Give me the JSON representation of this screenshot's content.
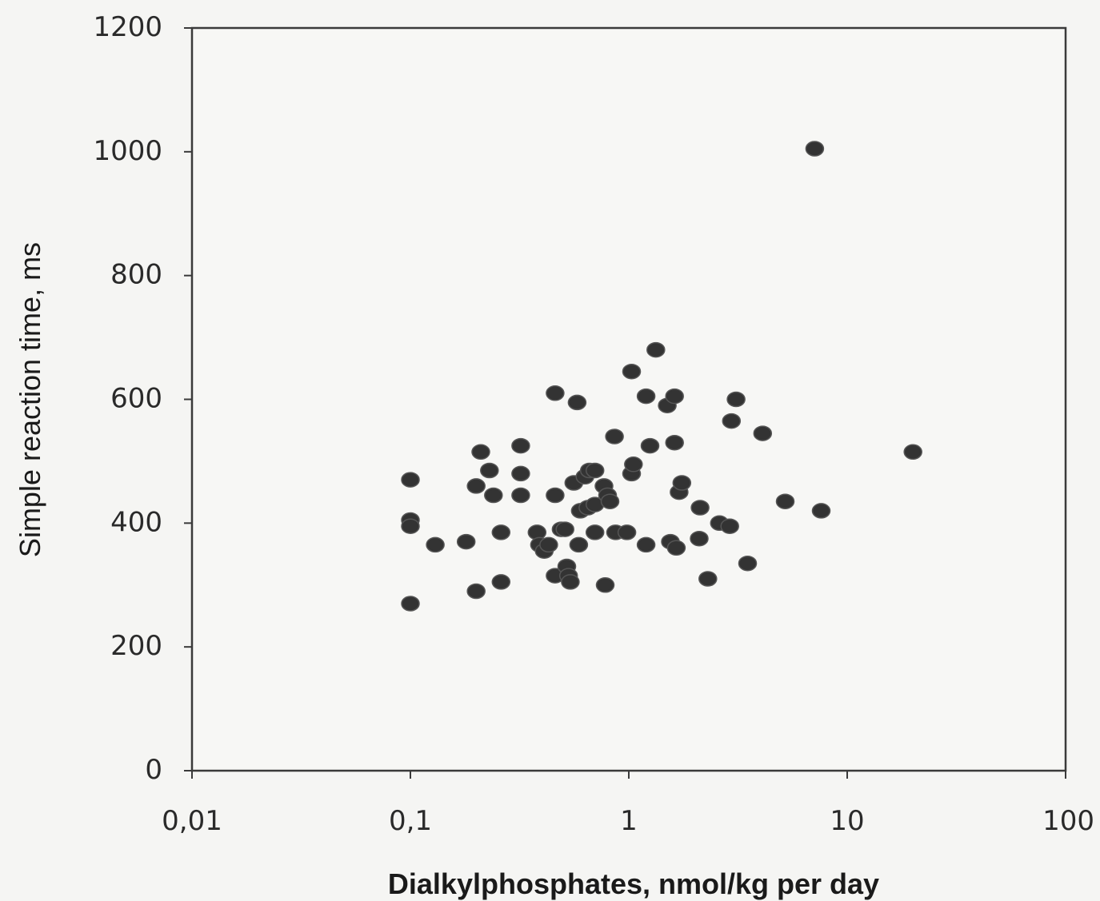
{
  "chart_data": {
    "type": "scatter",
    "title": "",
    "xlabel": "Dialkylphosphates, nmol/kg per day",
    "ylabel": "Simple reaction time, ms",
    "xscale": "log",
    "xlim": [
      0.01,
      100
    ],
    "ylim": [
      0,
      1200
    ],
    "x_ticks": [
      0.01,
      0.1,
      1,
      10,
      100
    ],
    "x_tick_labels": [
      "0,01",
      "0,1",
      "1",
      "10",
      "100"
    ],
    "y_ticks": [
      0,
      200,
      400,
      600,
      800,
      1000,
      1200
    ],
    "y_tick_labels": [
      "0",
      "200",
      "400",
      "600",
      "800",
      "1000",
      "1200"
    ],
    "grid": false,
    "legend": "none",
    "marker_color": "#333333",
    "series": [
      {
        "points": [
          [
            0.1,
            470
          ],
          [
            0.1,
            405
          ],
          [
            0.1,
            395
          ],
          [
            0.1,
            270
          ],
          [
            0.13,
            365
          ],
          [
            0.18,
            370
          ],
          [
            0.2,
            460
          ],
          [
            0.2,
            290
          ],
          [
            0.21,
            515
          ],
          [
            0.23,
            485
          ],
          [
            0.24,
            445
          ],
          [
            0.26,
            385
          ],
          [
            0.26,
            305
          ],
          [
            0.32,
            525
          ],
          [
            0.32,
            480
          ],
          [
            0.32,
            445
          ],
          [
            0.38,
            385
          ],
          [
            0.39,
            365
          ],
          [
            0.41,
            355
          ],
          [
            0.43,
            365
          ],
          [
            0.46,
            610
          ],
          [
            0.46,
            445
          ],
          [
            0.46,
            315
          ],
          [
            0.49,
            390
          ],
          [
            0.51,
            390
          ],
          [
            0.52,
            330
          ],
          [
            0.53,
            315
          ],
          [
            0.54,
            305
          ],
          [
            0.56,
            465
          ],
          [
            0.58,
            595
          ],
          [
            0.59,
            365
          ],
          [
            0.6,
            420
          ],
          [
            0.63,
            475
          ],
          [
            0.65,
            425
          ],
          [
            0.66,
            485
          ],
          [
            0.7,
            485
          ],
          [
            0.7,
            430
          ],
          [
            0.7,
            385
          ],
          [
            0.77,
            460
          ],
          [
            0.78,
            300
          ],
          [
            0.8,
            445
          ],
          [
            0.82,
            435
          ],
          [
            0.86,
            540
          ],
          [
            0.87,
            385
          ],
          [
            0.98,
            385
          ],
          [
            1.03,
            480
          ],
          [
            1.03,
            645
          ],
          [
            1.05,
            495
          ],
          [
            1.2,
            365
          ],
          [
            1.2,
            605
          ],
          [
            1.25,
            525
          ],
          [
            1.33,
            680
          ],
          [
            1.5,
            590
          ],
          [
            1.55,
            370
          ],
          [
            1.62,
            530
          ],
          [
            1.62,
            605
          ],
          [
            1.65,
            360
          ],
          [
            1.7,
            450
          ],
          [
            1.75,
            465
          ],
          [
            2.1,
            375
          ],
          [
            2.12,
            425
          ],
          [
            2.3,
            310
          ],
          [
            2.6,
            400
          ],
          [
            2.9,
            395
          ],
          [
            2.95,
            565
          ],
          [
            3.1,
            600
          ],
          [
            3.5,
            335
          ],
          [
            4.1,
            545
          ],
          [
            5.2,
            435
          ],
          [
            7.1,
            1005
          ],
          [
            7.6,
            420
          ],
          [
            20,
            515
          ]
        ]
      }
    ]
  }
}
